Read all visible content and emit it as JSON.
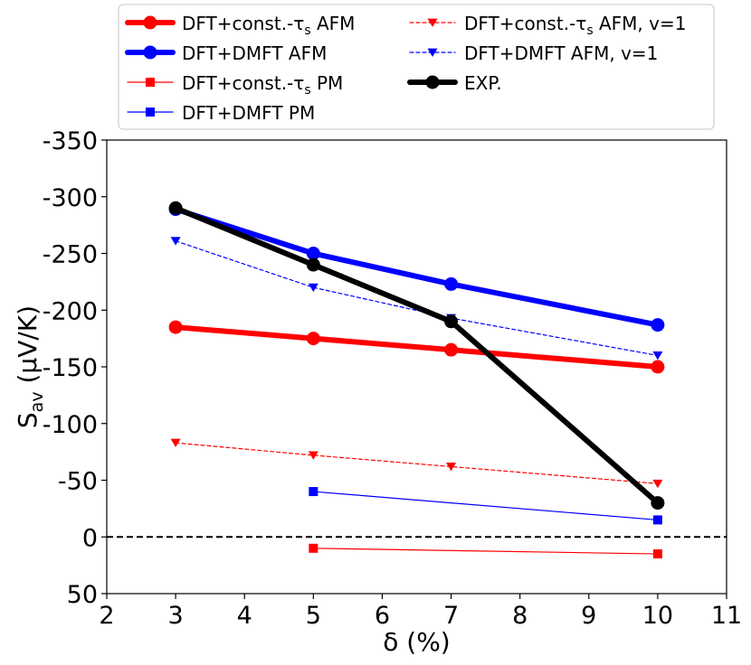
{
  "chart_data": {
    "type": "line",
    "title": "",
    "xlabel": "δ  (%)",
    "ylabel": {
      "base": "S",
      "sub": "av",
      "rest": "  (μV/K)"
    },
    "xlim": [
      2,
      11
    ],
    "ylim": [
      50,
      -350
    ],
    "inverted_y": true,
    "xticks": [
      2,
      3,
      4,
      5,
      6,
      7,
      8,
      9,
      10,
      11
    ],
    "yticks": [
      -350,
      -300,
      -250,
      -200,
      -150,
      -100,
      -50,
      0,
      50
    ],
    "reference_line": {
      "y": 0,
      "style": "dashed",
      "color": "#000000"
    },
    "legend_location": "top",
    "series": [
      {
        "name": "DFT+const.-τs AFM",
        "label": {
          "pre": "DFT+const.-τ",
          "sub": "s",
          "post": " AFM"
        },
        "color": "#ff0000",
        "marker": "circle",
        "width": "thick",
        "dashed": false,
        "x": [
          3,
          5,
          7,
          10
        ],
        "y": [
          -185,
          -175,
          -165,
          -150
        ]
      },
      {
        "name": "DFT+DMFT AFM",
        "label": {
          "pre": "DFT+DMFT AFM",
          "sub": "",
          "post": ""
        },
        "color": "#0000ff",
        "marker": "circle",
        "width": "thick",
        "dashed": false,
        "x": [
          3,
          5,
          7,
          10
        ],
        "y": [
          -289,
          -250,
          -223,
          -187
        ]
      },
      {
        "name": "DFT+const.-τs PM",
        "label": {
          "pre": "DFT+const.-τ",
          "sub": "s",
          "post": " PM"
        },
        "color": "#ff0000",
        "marker": "square",
        "width": "thin",
        "dashed": false,
        "x": [
          5,
          10
        ],
        "y": [
          10,
          15
        ]
      },
      {
        "name": "DFT+DMFT PM",
        "label": {
          "pre": "DFT+DMFT PM",
          "sub": "",
          "post": ""
        },
        "color": "#0000ff",
        "marker": "square",
        "width": "thin",
        "dashed": false,
        "x": [
          5,
          10
        ],
        "y": [
          -40,
          -15
        ]
      },
      {
        "name": "DFT+const.-τs AFM, v=1",
        "label": {
          "pre": "DFT+const.-τ",
          "sub": "s",
          "post": " AFM, v=1"
        },
        "color": "#ff0000",
        "marker": "triangle-down",
        "width": "thin",
        "dashed": true,
        "x": [
          3,
          5,
          7,
          10
        ],
        "y": [
          -83,
          -72,
          -62,
          -47
        ]
      },
      {
        "name": "DFT+DMFT AFM, v=1",
        "label": {
          "pre": "DFT+DMFT AFM, v=1",
          "sub": "",
          "post": ""
        },
        "color": "#0000ff",
        "marker": "triangle-down",
        "width": "thin",
        "dashed": true,
        "x": [
          3,
          5,
          7,
          10
        ],
        "y": [
          -261,
          -220,
          -193,
          -160
        ]
      },
      {
        "name": "EXP.",
        "label": {
          "pre": "EXP.",
          "sub": "",
          "post": ""
        },
        "color": "#000000",
        "marker": "circle",
        "width": "thick",
        "dashed": false,
        "x": [
          3,
          5,
          7,
          10
        ],
        "y": [
          -290,
          -240,
          -190,
          -30
        ]
      }
    ]
  }
}
